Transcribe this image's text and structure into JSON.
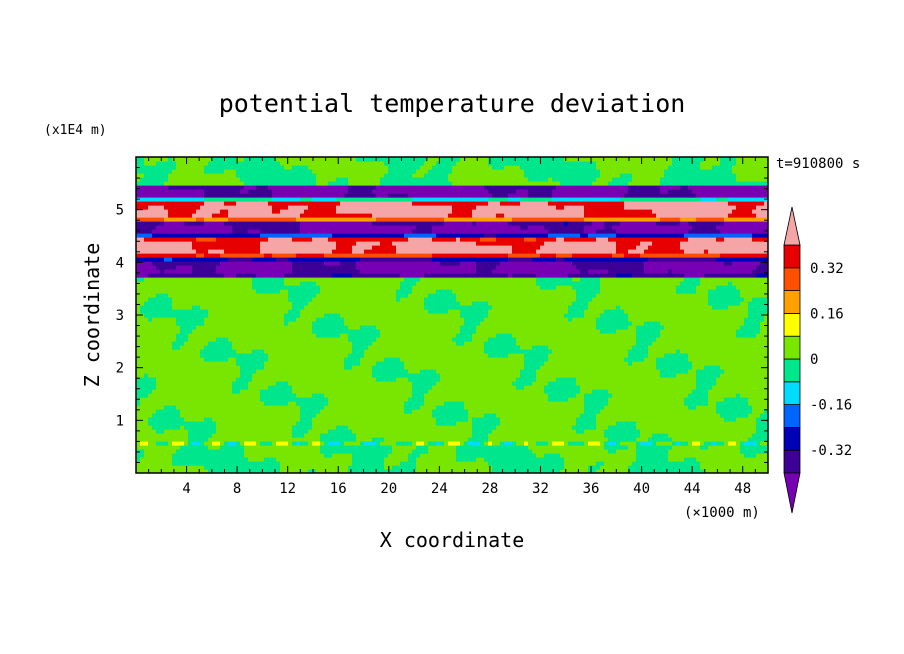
{
  "chart_data": {
    "type": "heatmap",
    "title": "potential temperature deviation",
    "xlabel": "X coordinate",
    "ylabel": "Z coordinate",
    "x_unit": "(×1000 m)",
    "y_unit": "(x1E4 m)",
    "time_label": "t=910800 s",
    "xlim": [
      0,
      50
    ],
    "ylim": [
      0,
      6
    ],
    "x_ticks": [
      4,
      8,
      12,
      16,
      20,
      24,
      28,
      32,
      36,
      40,
      44,
      48
    ],
    "y_ticks": [
      1,
      2,
      3,
      4,
      5
    ],
    "colorbar": {
      "boundaries": [
        -0.4,
        -0.32,
        -0.24,
        -0.16,
        -0.08,
        0,
        0.08,
        0.16,
        0.24,
        0.32,
        0.4
      ],
      "tick_labels": [
        "-0.32",
        "-0.16",
        "0",
        "0.16",
        "0.32"
      ],
      "tick_values": [
        -0.32,
        -0.16,
        0,
        0.16,
        0.32
      ],
      "colors": [
        "#7800b4",
        "#3c0096",
        "#0000b4",
        "#0064ff",
        "#00dcff",
        "#00e68c",
        "#78e600",
        "#ffff00",
        "#ffa000",
        "#ff5000",
        "#e60000",
        "#f5a5a5"
      ]
    },
    "field_bands": [
      {
        "z": [
          0.0,
          0.6
        ],
        "description": "mixed near-neutral with positive and negative cells",
        "value": 0.0
      },
      {
        "z": [
          0.6,
          3.7
        ],
        "description": "weak deviations",
        "value": 0.02
      },
      {
        "z": [
          3.7,
          4.1
        ],
        "description": "negative",
        "value": -0.42
      },
      {
        "z": [
          4.1,
          4.5
        ],
        "description": "positive",
        "value": 0.42
      },
      {
        "z": [
          4.5,
          4.8
        ],
        "description": "negative",
        "value": -0.42
      },
      {
        "z": [
          4.8,
          5.2
        ],
        "description": "positive",
        "value": 0.42
      },
      {
        "z": [
          5.2,
          5.5
        ],
        "description": "negative",
        "value": -0.42
      },
      {
        "z": [
          5.5,
          6.0
        ],
        "description": "weak deviations",
        "value": 0.0
      }
    ]
  }
}
